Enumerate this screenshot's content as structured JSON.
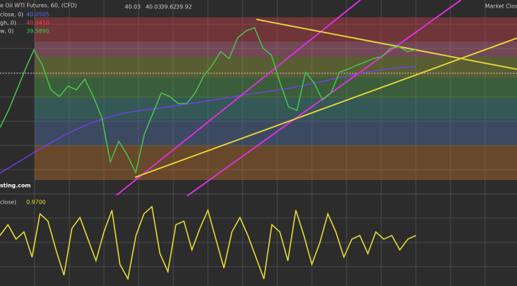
{
  "header": {
    "title": "e Oil WTI Futures, 60, (CFD)",
    "ohlc": [
      "40.03",
      "40.03",
      "39.62",
      "39.92"
    ],
    "status": "Market Closed",
    "watermark": "sting.com",
    "legend": [
      {
        "label": "close, 0)",
        "value": "40.0505",
        "color": "#5b6cff"
      },
      {
        "label": "gh, 0)",
        "value": "40.0410",
        "color": "#ff3b3b"
      },
      {
        "label": "w, 0)",
        "value": "39.5890",
        "color": "#3fd13f"
      }
    ]
  },
  "chart_data": [
    {
      "type": "line",
      "ylim": [
        36.5,
        42.5
      ],
      "series": [
        {
          "color": "#47c24a",
          "values": [
            38.25,
            38.82,
            39.51,
            40.2,
            40.84,
            40.32,
            39.51,
            39.28,
            39.63,
            39.51,
            39.86,
            39.28,
            38.59,
            37.1,
            37.79,
            37.33,
            36.75,
            38.02,
            38.71,
            39.4,
            39.28,
            39.05,
            39.05,
            39.4,
            39.97,
            40.32,
            40.78,
            40.55,
            41.24,
            41.47,
            41.58,
            40.89,
            40.66,
            39.74,
            38.94,
            38.82,
            40.09,
            39.74,
            39.17,
            39.4,
            40.09,
            40.2,
            40.32,
            40.43,
            40.55,
            40.61,
            40.89,
            40.94,
            40.78,
            40.84
          ]
        }
      ]
    },
    {
      "type": "line",
      "title": "close)",
      "ylim": [
        -1.2,
        1.2
      ],
      "series": [
        {
          "color": "#e8e032",
          "values": [
            0.2,
            0.5,
            0.1,
            0.3,
            -0.4,
            0.8,
            0.6,
            -0.2,
            -0.9,
            0.4,
            0.7,
            0.1,
            -0.5,
            0.3,
            0.9,
            -0.6,
            -1.0,
            0.2,
            0.8,
            1.0,
            -0.3,
            -0.8,
            0.5,
            0.6,
            -0.2,
            0.4,
            0.9,
            0.1,
            -0.7,
            0.3,
            0.7,
            0.2,
            -0.4,
            -1.0,
            0.5,
            0.3,
            -0.5,
            0.9,
            0.2,
            -0.6,
            0.0,
            0.8,
            0.3,
            -0.4,
            0.1,
            0.2,
            -0.3,
            0.3,
            0.1,
            0.2,
            -0.2,
            0.1,
            0.2
          ],
          "value_label": "0.9700"
        }
      ]
    }
  ]
}
